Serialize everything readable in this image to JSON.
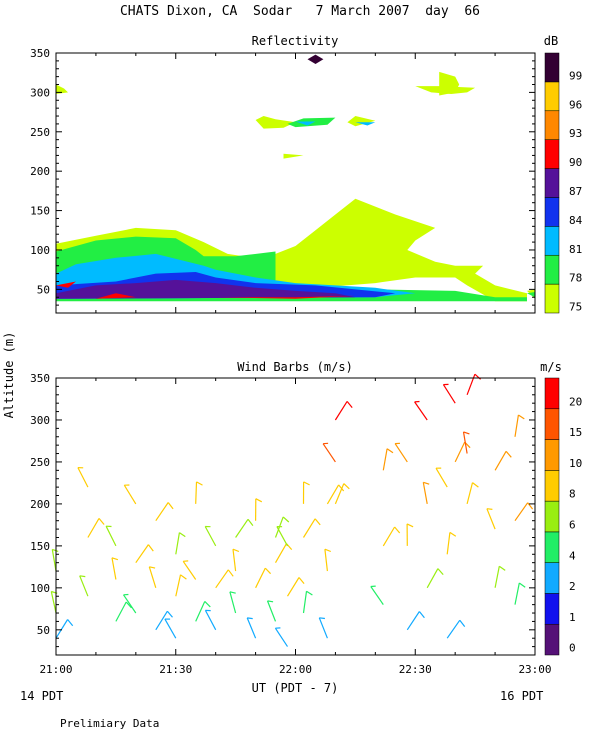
{
  "page": {
    "title": "CHATS Dixon, CA  Sodar   7 March 2007  day  66",
    "shared_ylabel": "Altitude (m)",
    "xlabel": "UT (PDT - 7)",
    "time_left_label": "14 PDT",
    "time_right_label": "16 PDT",
    "footnote": "Prelimiary Data"
  },
  "chart_data": [
    {
      "type": "heatmap",
      "title": "Reflectivity",
      "colorbar_title": "dB",
      "x_ticks": [
        "21:00",
        "21:30",
        "22:00",
        "22:30",
        "23:00"
      ],
      "xlim": [
        "21:00",
        "23:00"
      ],
      "ylim": [
        20,
        350
      ],
      "y_ticks": [
        50,
        100,
        150,
        200,
        250,
        300,
        350
      ],
      "grid": false,
      "levels": [
        {
          "label": "75",
          "color": "#ccff00"
        },
        {
          "label": "78",
          "color": "#22ee44"
        },
        {
          "label": "81",
          "color": "#00bbff"
        },
        {
          "label": "84",
          "color": "#1133ee"
        },
        {
          "label": "87",
          "color": "#551199"
        },
        {
          "label": "90",
          "color": "#ff0000"
        },
        {
          "label": "93",
          "color": "#ff8800"
        },
        {
          "label": "96",
          "color": "#ffcc00"
        },
        {
          "label": "99",
          "color": "#330033"
        }
      ],
      "regions": [
        {
          "level": 0,
          "points": [
            [
              0,
              108
            ],
            [
              10,
              118
            ],
            [
              20,
              128
            ],
            [
              30,
              125
            ],
            [
              37,
              110
            ],
            [
              43,
              95
            ],
            [
              47,
              92
            ],
            [
              55,
              95
            ],
            [
              60,
              105
            ],
            [
              65,
              125
            ],
            [
              70,
              145
            ],
            [
              75,
              165
            ],
            [
              85,
              145
            ],
            [
              95,
              128
            ],
            [
              90,
              112
            ],
            [
              88,
              100
            ],
            [
              95,
              85
            ],
            [
              100,
              80
            ],
            [
              107,
              80
            ],
            [
              105,
              70
            ],
            [
              110,
              55
            ],
            [
              118,
              45
            ],
            [
              118,
              35
            ],
            [
              110,
              35
            ],
            [
              103,
              55
            ],
            [
              100,
              65
            ],
            [
              90,
              65
            ],
            [
              80,
              58
            ],
            [
              60,
              50
            ],
            [
              40,
              38
            ],
            [
              0,
              38
            ]
          ]
        },
        {
          "level": 0,
          "points": [
            [
              118,
              48
            ],
            [
              130,
              60
            ],
            [
              140,
              66
            ],
            [
              150,
              68
            ],
            [
              160,
              70
            ],
            [
              170,
              78
            ],
            [
              180,
              82
            ],
            [
              190,
              82
            ],
            [
              200,
              80
            ],
            [
              200,
              58
            ],
            [
              190,
              58
            ],
            [
              180,
              38
            ],
            [
              120,
              38
            ]
          ]
        },
        {
          "level": 0,
          "points": [
            [
              50,
              265
            ],
            [
              52,
              270
            ],
            [
              55,
              266
            ],
            [
              60,
              262
            ],
            [
              57,
              255
            ],
            [
              52,
              254
            ]
          ]
        },
        {
          "level": 0,
          "points": [
            [
              73,
              262
            ],
            [
              75,
              270
            ],
            [
              80,
              264
            ],
            [
              75,
              257
            ]
          ]
        },
        {
          "level": 0,
          "points": [
            [
              96,
              314
            ],
            [
              96,
              326
            ],
            [
              100,
              320
            ],
            [
              101,
              310
            ],
            [
              100,
              300
            ],
            [
              96,
              296
            ]
          ]
        },
        {
          "level": 0,
          "points": [
            [
              90,
              308
            ],
            [
              94,
              300
            ],
            [
              99,
              298
            ],
            [
              103,
              300
            ],
            [
              105,
              306
            ],
            [
              96,
              308
            ]
          ]
        },
        {
          "level": 0,
          "points": [
            [
              57,
              222
            ],
            [
              62,
              220
            ],
            [
              57,
              216
            ]
          ]
        },
        {
          "level": 0,
          "points": [
            [
              170,
              240
            ],
            [
              173,
              248
            ],
            [
              176,
              242
            ],
            [
              173,
              236
            ]
          ]
        },
        {
          "level": 0,
          "points": [
            [
              157,
              180
            ],
            [
              163,
              180
            ],
            [
              165,
              168
            ],
            [
              173,
              160
            ],
            [
              173,
              140
            ],
            [
              165,
              140
            ],
            [
              165,
              155
            ],
            [
              160,
              165
            ]
          ]
        },
        {
          "level": 0,
          "points": [
            [
              0,
              298
            ],
            [
              3,
              300
            ],
            [
              2,
              305
            ],
            [
              0,
              310
            ]
          ]
        },
        {
          "level": 1,
          "points": [
            [
              0,
              98
            ],
            [
              10,
              112
            ],
            [
              20,
              117
            ],
            [
              30,
              115
            ],
            [
              35,
              100
            ],
            [
              37,
              92
            ],
            [
              45,
              92
            ],
            [
              55,
              98
            ],
            [
              55,
              60
            ],
            [
              60,
              55
            ],
            [
              80,
              50
            ],
            [
              100,
              48
            ],
            [
              110,
              40
            ],
            [
              118,
              40
            ],
            [
              118,
              35
            ],
            [
              0,
              35
            ]
          ]
        },
        {
          "level": 1,
          "points": [
            [
              118,
              45
            ],
            [
              130,
              55
            ],
            [
              140,
              58
            ],
            [
              150,
              60
            ],
            [
              160,
              58
            ],
            [
              170,
              60
            ],
            [
              180,
              65
            ],
            [
              190,
              70
            ],
            [
              200,
              60
            ],
            [
              200,
              40
            ],
            [
              120,
              40
            ]
          ]
        },
        {
          "level": 1,
          "points": [
            [
              58,
              260
            ],
            [
              62,
              267
            ],
            [
              70,
              268
            ],
            [
              68,
              259
            ],
            [
              60,
              256
            ]
          ]
        },
        {
          "level": 2,
          "points": [
            [
              0,
              70
            ],
            [
              5,
              82
            ],
            [
              15,
              90
            ],
            [
              25,
              95
            ],
            [
              37,
              80
            ],
            [
              40,
              75
            ],
            [
              50,
              65
            ],
            [
              60,
              58
            ],
            [
              70,
              55
            ],
            [
              80,
              52
            ],
            [
              90,
              45
            ],
            [
              80,
              40
            ],
            [
              0,
              38
            ]
          ]
        },
        {
          "level": 2,
          "points": [
            [
              170,
              48
            ],
            [
              180,
              55
            ],
            [
              190,
              52
            ],
            [
              185,
              42
            ],
            [
              170,
              42
            ]
          ]
        },
        {
          "level": 3,
          "points": [
            [
              0,
              55
            ],
            [
              15,
              60
            ],
            [
              25,
              70
            ],
            [
              35,
              72
            ],
            [
              40,
              65
            ],
            [
              50,
              58
            ],
            [
              65,
              55
            ],
            [
              75,
              50
            ],
            [
              85,
              45
            ],
            [
              80,
              40
            ],
            [
              0,
              38
            ]
          ]
        },
        {
          "level": 4,
          "points": [
            [
              0,
              45
            ],
            [
              10,
              55
            ],
            [
              20,
              58
            ],
            [
              30,
              62
            ],
            [
              40,
              58
            ],
            [
              50,
              52
            ],
            [
              60,
              48
            ],
            [
              70,
              45
            ],
            [
              75,
              40
            ],
            [
              0,
              38
            ]
          ]
        },
        {
          "level": 5,
          "points": [
            [
              0,
              55
            ],
            [
              5,
              60
            ],
            [
              3,
              52
            ]
          ]
        },
        {
          "level": 5,
          "points": [
            [
              10,
              38
            ],
            [
              15,
              45
            ],
            [
              20,
              40
            ]
          ]
        },
        {
          "level": 5,
          "points": [
            [
              40,
              40
            ],
            [
              60,
              40
            ],
            [
              75,
              42
            ],
            [
              60,
              38
            ]
          ]
        },
        {
          "level": 8,
          "points": [
            [
              63,
              342
            ],
            [
              65,
              348
            ],
            [
              67,
              342
            ],
            [
              65,
              336
            ]
          ]
        },
        {
          "level": 2,
          "points": [
            [
              75,
              262
            ],
            [
              80,
              262
            ],
            [
              78,
              258
            ]
          ]
        },
        {
          "level": 2,
          "points": [
            [
              60,
              263
            ],
            [
              65,
              263
            ],
            [
              63,
              258
            ]
          ]
        }
      ]
    },
    {
      "type": "scatter",
      "title": "Wind Barbs (m/s)",
      "colorbar_title": "m/s",
      "x_ticks": [
        "21:00",
        "21:30",
        "22:00",
        "22:30",
        "23:00"
      ],
      "xlim": [
        "21:00",
        "23:00"
      ],
      "ylim": [
        20,
        350
      ],
      "y_ticks": [
        50,
        100,
        150,
        200,
        250,
        300,
        350
      ],
      "grid": false,
      "levels": [
        {
          "label": "0",
          "color": "#551177"
        },
        {
          "label": "1",
          "color": "#1111ee"
        },
        {
          "label": "2",
          "color": "#11aaff"
        },
        {
          "label": "4",
          "color": "#22ee66"
        },
        {
          "label": "6",
          "color": "#99ee11"
        },
        {
          "label": "8",
          "color": "#ffcc00"
        },
        {
          "label": "10",
          "color": "#ff9900"
        },
        {
          "label": "15",
          "color": "#ff5500"
        },
        {
          "label": "20",
          "color": "#ff0000"
        }
      ],
      "barbs": [
        {
          "t": 0,
          "alt": [
            40,
            70,
            120
          ]
        },
        {
          "t": 8,
          "alt": [
            90,
            160,
            220
          ]
        },
        {
          "t": 15,
          "alt": [
            60,
            110,
            150
          ]
        },
        {
          "t": 20,
          "alt": [
            70,
            130,
            200
          ]
        },
        {
          "t": 25,
          "alt": [
            50,
            100,
            180
          ]
        },
        {
          "t": 30,
          "alt": [
            40,
            90,
            140
          ]
        },
        {
          "t": 35,
          "alt": [
            60,
            110,
            200
          ]
        },
        {
          "t": 40,
          "alt": [
            50,
            100,
            150
          ]
        },
        {
          "t": 45,
          "alt": [
            70,
            120,
            160
          ]
        },
        {
          "t": 50,
          "alt": [
            40,
            100,
            180
          ]
        },
        {
          "t": 55,
          "alt": [
            60,
            130,
            160
          ]
        },
        {
          "t": 58,
          "alt": [
            30,
            90,
            150
          ]
        },
        {
          "t": 62,
          "alt": [
            70,
            160,
            200
          ]
        },
        {
          "t": 68,
          "alt": [
            40,
            120,
            200
          ]
        },
        {
          "t": 70,
          "alt": [
            200,
            250,
            300
          ]
        },
        {
          "t": 82,
          "alt": [
            80,
            150,
            240
          ]
        },
        {
          "t": 88,
          "alt": [
            50,
            150,
            250
          ]
        },
        {
          "t": 93,
          "alt": [
            100,
            200,
            300
          ]
        },
        {
          "t": 98,
          "alt": [
            40,
            140,
            220
          ]
        },
        {
          "t": 100,
          "alt": [
            250,
            320
          ]
        },
        {
          "t": 103,
          "alt": [
            200,
            260,
            330
          ]
        },
        {
          "t": 110,
          "alt": [
            100,
            170,
            240
          ]
        },
        {
          "t": 115,
          "alt": [
            80,
            180,
            280
          ]
        }
      ]
    }
  ]
}
